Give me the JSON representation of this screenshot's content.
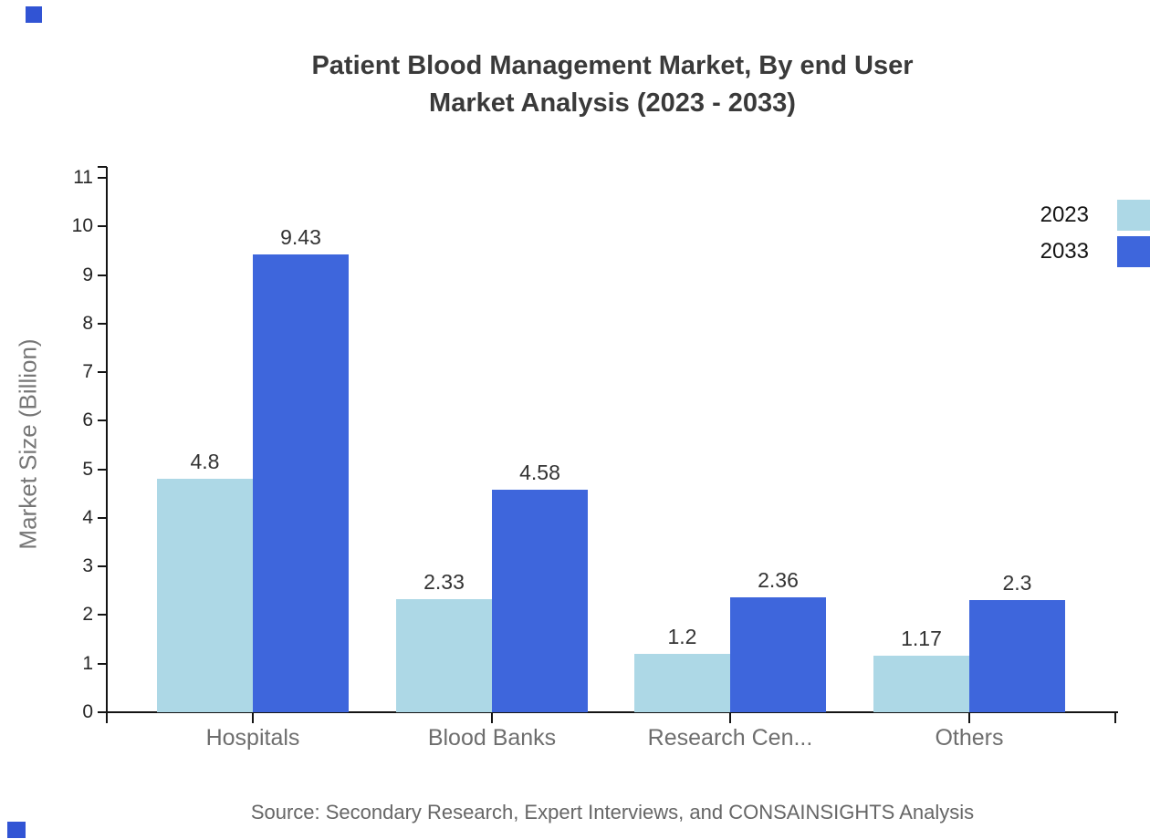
{
  "title": {
    "line1": "Patient Blood Management Market, By end User",
    "line2": "Market Analysis (2023 - 2033)"
  },
  "y_axis_title": "Market Size (Billion)",
  "source_note": "Source: Secondary Research, Expert Interviews, and CONSAINSIGHTS Analysis",
  "colors": {
    "series_2023": "#ADD8E6",
    "series_2033": "#3E66DC",
    "axis": "#141414",
    "corner_accent": "#3154D4"
  },
  "chart_data": {
    "type": "bar",
    "title": "Patient Blood Management Market, By end User Market Analysis (2023 - 2033)",
    "categories": [
      "Hospitals",
      "Blood Banks",
      "Research Cen...",
      "Others"
    ],
    "series": [
      {
        "name": "2023",
        "color": "#ADD8E6",
        "values": [
          4.8,
          2.33,
          1.2,
          1.17
        ]
      },
      {
        "name": "2033",
        "color": "#3E66DC",
        "values": [
          9.43,
          4.58,
          2.36,
          2.3
        ]
      }
    ],
    "xlabel": "",
    "ylabel": "Market Size (Billion)",
    "ylim": [
      0,
      11
    ],
    "yticks": [
      0,
      1,
      2,
      3,
      4,
      5,
      6,
      7,
      8,
      9,
      10,
      11
    ],
    "grid": false,
    "legend_position": "top-right",
    "bar_value_labels_shown": true
  }
}
